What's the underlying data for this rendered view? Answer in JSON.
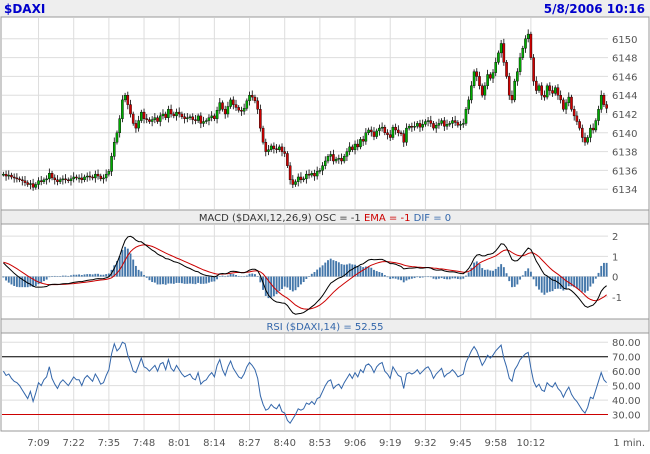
{
  "header": {
    "symbol": "$DAXI",
    "datetime": "5/8/2006 10:16",
    "text_color": "#0000cc",
    "bg_color": "#eeeeee"
  },
  "chart_data": [
    {
      "type": "candlestick",
      "title": "$DAXI",
      "ylim": [
        6132,
        6152
      ],
      "y_ticks": [
        6134,
        6136,
        6138,
        6140,
        6142,
        6144,
        6146,
        6148,
        6150
      ],
      "up_color": "#00aa00",
      "down_color": "#cc0000",
      "grid": true,
      "closes": [
        6135.6,
        6135.4,
        6135.5,
        6135.3,
        6135.2,
        6135.1,
        6135.0,
        6134.9,
        6134.7,
        6134.5,
        6134.6,
        6134.2,
        6134.5,
        6134.9,
        6134.8,
        6135.0,
        6135.1,
        6135.7,
        6135.2,
        6135.0,
        6134.8,
        6135.0,
        6135.1,
        6135.0,
        6134.9,
        6135.1,
        6135.3,
        6135.2,
        6135.2,
        6135.0,
        6135.3,
        6135.4,
        6135.3,
        6135.2,
        6135.6,
        6135.4,
        6135.1,
        6135.2,
        6135.6,
        6135.9,
        6137.5,
        6139.0,
        6140.0,
        6141.5,
        6143.5,
        6144.0,
        6143.0,
        6142.0,
        6141.0,
        6140.5,
        6141.3,
        6142.2,
        6141.5,
        6141.4,
        6141.2,
        6141.4,
        6141.6,
        6141.2,
        6141.8,
        6142.0,
        6141.6,
        6142.5,
        6142.0,
        6141.8,
        6142.2,
        6142.0,
        6141.7,
        6141.5,
        6141.6,
        6141.7,
        6141.4,
        6141.3,
        6141.8,
        6141.0,
        6141.2,
        6141.3,
        6141.6,
        6141.8,
        6141.5,
        6142.4,
        6143.2,
        6142.5,
        6142.0,
        6142.8,
        6143.5,
        6143.0,
        6142.7,
        6142.4,
        6142.3,
        6142.6,
        6143.4,
        6144.0,
        6143.8,
        6143.4,
        6142.5,
        6140.5,
        6139.0,
        6138.0,
        6138.2,
        6138.6,
        6138.3,
        6138.2,
        6138.5,
        6138.0,
        6137.8,
        6136.5,
        6135.0,
        6134.5,
        6134.8,
        6135.3,
        6135.0,
        6135.1,
        6135.6,
        6135.5,
        6135.7,
        6135.4,
        6135.9,
        6136.0,
        6136.5,
        6137.0,
        6137.5,
        6137.7,
        6137.0,
        6137.2,
        6137.3,
        6137.0,
        6137.5,
        6138.0,
        6138.5,
        6138.2,
        6138.8,
        6138.5,
        6139.3,
        6139.1,
        6140.0,
        6140.3,
        6140.1,
        6139.6,
        6140.2,
        6140.5,
        6140.6,
        6140.0,
        6139.8,
        6139.5,
        6140.6,
        6140.3,
        6140.0,
        6139.9,
        6139.0,
        6140.5,
        6140.7,
        6140.6,
        6140.7,
        6141.0,
        6140.6,
        6140.9,
        6141.2,
        6141.3,
        6141.0,
        6140.5,
        6140.8,
        6141.0,
        6141.3,
        6140.7,
        6140.9,
        6141.0,
        6141.3,
        6141.1,
        6140.8,
        6140.9,
        6141.0,
        6142.5,
        6143.5,
        6145.0,
        6146.5,
        6146.0,
        6145.0,
        6144.0,
        6145.0,
        6146.2,
        6145.8,
        6146.4,
        6147.5,
        6148.5,
        6149.5,
        6147.5,
        6146.0,
        6144.0,
        6143.5,
        6145.5,
        6146.5,
        6148.0,
        6149.0,
        6150.0,
        6150.5,
        6148.0,
        6145.5,
        6144.5,
        6145.0,
        6144.0,
        6143.8,
        6145.0,
        6144.5,
        6144.2,
        6144.8,
        6144.0,
        6143.5,
        6142.5,
        6143.2,
        6143.8,
        6142.5,
        6141.8,
        6141.2,
        6140.5,
        6139.5,
        6139.0,
        6139.5,
        6140.5,
        6140.3,
        6141.3,
        6142.5,
        6144.0,
        6143.0,
        6142.6
      ]
    },
    {
      "type": "macd",
      "title": "MACD ($DAXI,12,26,9) OSC = -1 EMA = -1 DIF = 0",
      "label_parts": {
        "main": "MACD ($DAXI,12,26,9) OSC = -1 ",
        "ema": "EMA = -1",
        "dif": " DIF = 0"
      },
      "ylim": [
        -2,
        2.5
      ],
      "y_ticks": [
        2,
        1,
        0,
        -1
      ],
      "macd_color": "#000000",
      "signal_color": "#cc0000",
      "hist_color": "#4477aa",
      "macd": [
        0.68,
        0.54,
        0.42,
        0.29,
        0.16,
        0.05,
        -0.05,
        -0.14,
        -0.23,
        -0.32,
        -0.38,
        -0.47,
        -0.52,
        -0.52,
        -0.52,
        -0.51,
        -0.49,
        -0.42,
        -0.39,
        -0.38,
        -0.39,
        -0.38,
        -0.36,
        -0.35,
        -0.35,
        -0.32,
        -0.29,
        -0.27,
        -0.25,
        -0.25,
        -0.22,
        -0.19,
        -0.17,
        -0.16,
        -0.12,
        -0.1,
        -0.11,
        -0.1,
        -0.06,
        -0.01,
        0.16,
        0.41,
        0.68,
        1.02,
        1.44,
        1.79,
        1.96,
        1.99,
        1.92,
        1.8,
        1.73,
        1.72,
        1.62,
        1.52,
        1.41,
        1.31,
        1.23,
        1.11,
        1.04,
        0.98,
        0.89,
        0.87,
        0.81,
        0.74,
        0.71,
        0.66,
        0.59,
        0.51,
        0.45,
        0.4,
        0.33,
        0.26,
        0.24,
        0.15,
        0.09,
        0.05,
        0.03,
        0.02,
        -0.01,
        0.03,
        0.13,
        0.15,
        0.13,
        0.17,
        0.25,
        0.26,
        0.25,
        0.22,
        0.19,
        0.19,
        0.24,
        0.32,
        0.36,
        0.36,
        0.29,
        0.04,
        -0.31,
        -0.67,
        -0.92,
        -1.07,
        -1.19,
        -1.26,
        -1.28,
        -1.31,
        -1.32,
        -1.43,
        -1.62,
        -1.79,
        -1.86,
        -1.84,
        -1.82,
        -1.78,
        -1.69,
        -1.6,
        -1.49,
        -1.39,
        -1.25,
        -1.11,
        -0.94,
        -0.74,
        -0.52,
        -0.33,
        -0.24,
        -0.15,
        -0.07,
        -0.03,
        0.05,
        0.16,
        0.29,
        0.36,
        0.45,
        0.5,
        0.59,
        0.63,
        0.73,
        0.82,
        0.85,
        0.83,
        0.84,
        0.85,
        0.85,
        0.79,
        0.72,
        0.64,
        0.64,
        0.61,
        0.55,
        0.5,
        0.38,
        0.4,
        0.42,
        0.42,
        0.43,
        0.45,
        0.42,
        0.42,
        0.44,
        0.45,
        0.42,
        0.35,
        0.32,
        0.32,
        0.33,
        0.28,
        0.25,
        0.23,
        0.24,
        0.22,
        0.18,
        0.15,
        0.14,
        0.25,
        0.4,
        0.62,
        0.9,
        1.06,
        1.09,
        1.02,
        1.02,
        1.09,
        1.11,
        1.15,
        1.27,
        1.43,
        1.62,
        1.6,
        1.43,
        1.13,
        0.84,
        0.77,
        0.79,
        0.92,
        1.07,
        1.25,
        1.41,
        1.34,
        1.07,
        0.76,
        0.55,
        0.31,
        0.1,
        0.03,
        -0.07,
        -0.17,
        -0.2,
        -0.29,
        -0.4,
        -0.56,
        -0.62,
        -0.61,
        -0.7,
        -0.82,
        -0.96,
        -1.12,
        -1.3,
        -1.46,
        -1.52,
        -1.46,
        -1.41,
        -1.27,
        -1.04,
        -0.73,
        -0.56,
        -0.45
      ],
      "signal": [
        0.71,
        0.67,
        0.62,
        0.55,
        0.47,
        0.39,
        0.3,
        0.21,
        0.12,
        0.03,
        -0.05,
        -0.13,
        -0.21,
        -0.27,
        -0.32,
        -0.36,
        -0.39,
        -0.4,
        -0.4,
        -0.4,
        -0.4,
        -0.39,
        -0.39,
        -0.38,
        -0.37,
        -0.36,
        -0.35,
        -0.33,
        -0.32,
        -0.3,
        -0.29,
        -0.27,
        -0.25,
        -0.23,
        -0.21,
        -0.19,
        -0.17,
        -0.16,
        -0.14,
        -0.11,
        -0.06,
        0.04,
        0.17,
        0.34,
        0.56,
        0.81,
        1.04,
        1.23,
        1.36,
        1.45,
        1.51,
        1.55,
        1.57,
        1.56,
        1.53,
        1.49,
        1.43,
        1.37,
        1.3,
        1.23,
        1.16,
        1.1,
        1.04,
        0.98,
        0.92,
        0.87,
        0.81,
        0.75,
        0.69,
        0.63,
        0.57,
        0.51,
        0.45,
        0.39,
        0.33,
        0.28,
        0.23,
        0.19,
        0.15,
        0.12,
        0.12,
        0.12,
        0.13,
        0.14,
        0.16,
        0.18,
        0.2,
        0.2,
        0.2,
        0.2,
        0.21,
        0.23,
        0.26,
        0.28,
        0.28,
        0.23,
        0.13,
        -0.03,
        -0.21,
        -0.38,
        -0.54,
        -0.68,
        -0.8,
        -0.9,
        -0.99,
        -1.07,
        -1.18,
        -1.3,
        -1.41,
        -1.49,
        -1.56,
        -1.6,
        -1.61,
        -1.61,
        -1.58,
        -1.54,
        -1.48,
        -1.41,
        -1.31,
        -1.2,
        -1.06,
        -0.92,
        -0.78,
        -0.66,
        -0.54,
        -0.44,
        -0.34,
        -0.24,
        -0.14,
        -0.04,
        0.06,
        0.15,
        0.24,
        0.32,
        0.4,
        0.49,
        0.56,
        0.61,
        0.66,
        0.7,
        0.73,
        0.74,
        0.74,
        0.72,
        0.7,
        0.68,
        0.65,
        0.62,
        0.57,
        0.53,
        0.51,
        0.49,
        0.48,
        0.47,
        0.46,
        0.45,
        0.45,
        0.45,
        0.44,
        0.42,
        0.41,
        0.39,
        0.38,
        0.36,
        0.34,
        0.32,
        0.3,
        0.28,
        0.26,
        0.24,
        0.21,
        0.22,
        0.26,
        0.33,
        0.44,
        0.56,
        0.67,
        0.74,
        0.8,
        0.86,
        0.91,
        0.96,
        1.02,
        1.11,
        1.21,
        1.29,
        1.32,
        1.28,
        1.19,
        1.11,
        1.05,
        1.02,
        1.03,
        1.07,
        1.14,
        1.18,
        1.16,
        1.08,
        0.98,
        0.84,
        0.7,
        0.56,
        0.43,
        0.31,
        0.21,
        0.11,
        0.01,
        -0.1,
        -0.21,
        -0.29,
        -0.38,
        -0.47,
        -0.57,
        -0.68,
        -0.8,
        -0.93,
        -1.05,
        -1.13,
        -1.18,
        -1.2,
        -1.16,
        -1.08,
        -1.01,
        -0.9
      ]
    },
    {
      "type": "line",
      "title": "RSI ($DAXI,14) = 52.55",
      "ylim": [
        20,
        85
      ],
      "y_ticks": [
        80,
        70,
        60,
        50,
        40,
        30
      ],
      "overbought": 70,
      "oversold": 30,
      "overbought_color": "#000000",
      "oversold_color": "#cc0000",
      "line_color": "#3366aa",
      "values": [
        60,
        57,
        58,
        55,
        53,
        52,
        50,
        47,
        44,
        41,
        46,
        39,
        45,
        52,
        50,
        54,
        56,
        63,
        55,
        51,
        48,
        52,
        54,
        52,
        50,
        53,
        56,
        54,
        54,
        50,
        55,
        57,
        55,
        53,
        58,
        55,
        51,
        52,
        57,
        61,
        72,
        79,
        74,
        76,
        80,
        79,
        71,
        66,
        60,
        59,
        64,
        69,
        63,
        62,
        60,
        62,
        64,
        60,
        65,
        66,
        61,
        68,
        62,
        60,
        64,
        61,
        58,
        56,
        57,
        58,
        55,
        54,
        59,
        51,
        53,
        54,
        57,
        59,
        56,
        64,
        68,
        61,
        57,
        63,
        67,
        62,
        59,
        56,
        55,
        58,
        63,
        66,
        64,
        61,
        55,
        43,
        37,
        33,
        34,
        37,
        35,
        34,
        37,
        32,
        31,
        26,
        24,
        27,
        30,
        34,
        33,
        34,
        38,
        37,
        39,
        37,
        41,
        42,
        46,
        50,
        53,
        54,
        48,
        50,
        51,
        48,
        52,
        55,
        58,
        55,
        59,
        56,
        61,
        59,
        64,
        65,
        63,
        59,
        63,
        65,
        66,
        60,
        58,
        55,
        63,
        60,
        57,
        56,
        48,
        58,
        59,
        58,
        59,
        61,
        58,
        60,
        62,
        63,
        60,
        55,
        58,
        60,
        62,
        56,
        58,
        59,
        61,
        59,
        56,
        57,
        58,
        66,
        70,
        74,
        77,
        74,
        69,
        64,
        67,
        71,
        69,
        71,
        74,
        76,
        78,
        69,
        63,
        55,
        53,
        61,
        64,
        68,
        70,
        72,
        73,
        62,
        53,
        49,
        51,
        47,
        46,
        52,
        50,
        49,
        52,
        48,
        46,
        42,
        46,
        49,
        44,
        41,
        39,
        36,
        33,
        31,
        35,
        42,
        41,
        47,
        53,
        59,
        54,
        52
      ]
    }
  ],
  "x_axis": {
    "time_labels": [
      "7:09",
      "7:22",
      "7:35",
      "7:48",
      "8:01",
      "8:14",
      "8:27",
      "8:40",
      "8:53",
      "9:06",
      "9:19",
      "9:32",
      "9:45",
      "9:58",
      "10:12"
    ],
    "unit_label": "1 min."
  },
  "colors": {
    "grid": "#dddddd",
    "border": "#999999",
    "label_band": "#eeeeee",
    "tick_text": "#555555",
    "title_text": "#333333"
  }
}
